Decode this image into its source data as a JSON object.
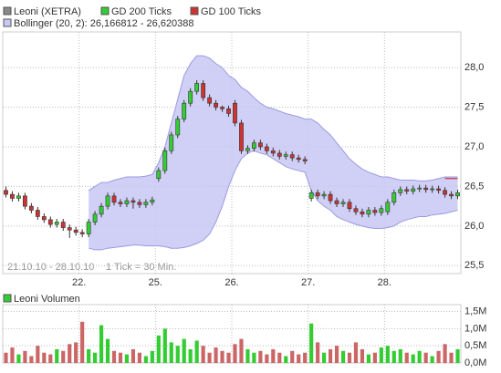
{
  "chart_data": [
    {
      "type": "candlestick",
      "name": "Leoni (XETRA)",
      "color": "#888888",
      "up_color": "#33cc33",
      "down_color": "#cc3333",
      "range_label": "21.10.10 - 28.10.10",
      "tick_label": "1 Tick = 30 Min.",
      "categories": [
        null,
        null,
        null,
        null,
        null,
        null,
        null,
        null,
        null,
        null,
        null,
        null,
        "22.",
        null,
        null,
        null,
        null,
        null,
        null,
        null,
        null,
        null,
        null,
        null,
        "25.",
        null,
        null,
        null,
        null,
        null,
        null,
        null,
        null,
        null,
        null,
        null,
        "26.",
        null,
        null,
        null,
        null,
        null,
        null,
        null,
        null,
        null,
        null,
        null,
        "27.",
        null,
        null,
        null,
        null,
        null,
        null,
        null,
        null,
        null,
        null,
        null,
        "28.",
        null,
        null,
        null,
        null,
        null,
        null,
        null,
        null,
        null,
        null,
        null
      ],
      "open": [
        26.45,
        26.4,
        26.35,
        26.38,
        26.25,
        26.2,
        26.12,
        26.08,
        26.02,
        26.05,
        25.98,
        25.95,
        25.92,
        25.9,
        26.05,
        26.15,
        26.25,
        26.38,
        26.3,
        26.28,
        26.32,
        26.3,
        26.27,
        26.3,
        26.6,
        26.7,
        26.95,
        27.15,
        27.35,
        27.55,
        27.7,
        27.8,
        27.62,
        27.55,
        27.5,
        27.48,
        27.55,
        27.3,
        26.95,
        26.98,
        27.05,
        27.0,
        26.95,
        26.92,
        26.88,
        26.9,
        26.86,
        26.84,
        26.35,
        26.42,
        26.38,
        26.4,
        26.32,
        26.28,
        26.3,
        26.22,
        26.18,
        26.15,
        26.2,
        26.17,
        26.18,
        26.3,
        26.42,
        26.46,
        26.44,
        26.47,
        26.48,
        26.46,
        26.47,
        26.45,
        26.4,
        26.38
      ],
      "high": [
        26.5,
        26.44,
        26.42,
        26.42,
        26.29,
        26.24,
        26.16,
        26.12,
        26.09,
        26.09,
        26.02,
        25.99,
        25.96,
        26.09,
        26.19,
        26.29,
        26.42,
        26.42,
        26.34,
        26.36,
        26.36,
        26.34,
        26.34,
        26.37,
        26.74,
        26.99,
        27.19,
        27.39,
        27.59,
        27.74,
        27.84,
        27.84,
        27.66,
        27.59,
        27.52,
        27.52,
        27.59,
        27.34,
        27.02,
        27.09,
        27.09,
        27.04,
        26.99,
        26.96,
        26.94,
        26.94,
        26.9,
        26.88,
        26.46,
        26.46,
        26.44,
        26.44,
        26.36,
        26.34,
        26.34,
        26.26,
        26.22,
        26.24,
        26.24,
        26.26,
        26.34,
        26.46,
        26.5,
        26.5,
        26.51,
        26.52,
        26.52,
        26.51,
        26.51,
        26.49,
        26.44,
        26.46
      ],
      "low": [
        26.36,
        26.31,
        26.31,
        26.21,
        26.16,
        26.08,
        26.04,
        25.98,
        25.98,
        25.94,
        25.85,
        25.88,
        25.86,
        25.86,
        26.01,
        26.11,
        26.21,
        26.26,
        26.24,
        26.24,
        26.22,
        26.23,
        26.23,
        26.26,
        26.56,
        26.66,
        26.91,
        27.11,
        27.31,
        27.51,
        27.66,
        27.58,
        27.51,
        27.46,
        27.44,
        27.38,
        27.26,
        26.91,
        26.91,
        26.94,
        26.96,
        26.91,
        26.88,
        26.84,
        26.84,
        26.82,
        26.8,
        26.78,
        26.31,
        26.34,
        26.34,
        26.28,
        26.24,
        26.24,
        26.18,
        26.14,
        26.11,
        26.11,
        26.13,
        26.13,
        26.14,
        26.26,
        26.38,
        26.4,
        26.4,
        26.43,
        26.42,
        26.42,
        26.41,
        26.36,
        26.34,
        26.34
      ],
      "close": [
        26.4,
        26.35,
        26.38,
        26.25,
        26.2,
        26.12,
        26.08,
        26.02,
        26.05,
        25.98,
        25.95,
        25.92,
        25.9,
        26.05,
        26.15,
        26.25,
        26.38,
        26.3,
        26.28,
        26.32,
        26.3,
        26.27,
        26.3,
        26.33,
        26.7,
        26.95,
        27.15,
        27.35,
        27.55,
        27.7,
        27.8,
        27.62,
        27.55,
        27.5,
        27.48,
        27.42,
        27.3,
        26.95,
        26.98,
        27.05,
        27.0,
        26.95,
        26.92,
        26.88,
        26.9,
        26.86,
        26.84,
        26.82,
        26.42,
        26.38,
        26.4,
        26.32,
        26.28,
        26.3,
        26.22,
        26.18,
        26.15,
        26.2,
        26.17,
        26.22,
        26.3,
        26.42,
        26.46,
        26.44,
        26.47,
        26.48,
        26.46,
        26.47,
        26.45,
        26.4,
        26.38,
        26.42
      ],
      "series": [
        {
          "name": "GD 200 Ticks",
          "color": "#33cc33",
          "values": [
            null,
            null,
            null,
            null,
            null,
            null,
            null,
            null,
            null,
            null,
            null,
            null,
            null,
            null,
            null,
            null,
            null,
            null,
            null,
            null,
            null,
            null,
            null,
            null,
            null,
            null,
            null,
            null,
            null,
            null,
            null,
            null,
            null,
            null,
            null,
            null,
            null,
            null,
            null,
            null,
            null,
            null,
            null,
            null,
            null,
            null,
            null,
            null,
            null,
            null,
            null,
            null,
            null,
            null,
            null,
            null,
            null,
            null,
            null,
            null,
            null,
            null,
            null,
            null,
            null,
            null,
            null,
            null,
            null,
            null,
            null,
            null
          ]
        },
        {
          "name": "GD 100 Ticks",
          "color": "#cc3333",
          "values": [
            null,
            null,
            null,
            null,
            null,
            null,
            null,
            null,
            null,
            null,
            null,
            null,
            null,
            null,
            null,
            null,
            null,
            null,
            null,
            null,
            null,
            null,
            null,
            null,
            null,
            null,
            null,
            null,
            null,
            null,
            null,
            null,
            null,
            null,
            null,
            null,
            null,
            null,
            null,
            null,
            null,
            null,
            null,
            null,
            null,
            null,
            null,
            null,
            null,
            null,
            null,
            null,
            null,
            null,
            null,
            null,
            null,
            null,
            null,
            null,
            null,
            null,
            null,
            null,
            null,
            null,
            null,
            null,
            null,
            26.6,
            26.6,
            26.6
          ]
        }
      ],
      "bollinger": {
        "name": "Bollinger (20, 2): 26,166812 - 26,620388",
        "color": "#c8c8f5",
        "upper": [
          null,
          null,
          null,
          null,
          null,
          null,
          null,
          null,
          null,
          null,
          null,
          null,
          null,
          26.45,
          26.5,
          26.55,
          26.55,
          26.58,
          26.6,
          26.62,
          26.62,
          26.62,
          26.63,
          26.65,
          26.8,
          27.0,
          27.3,
          27.6,
          27.9,
          28.05,
          28.15,
          28.15,
          28.12,
          28.05,
          28.0,
          27.9,
          27.85,
          27.75,
          27.7,
          27.62,
          27.55,
          27.5,
          27.48,
          27.45,
          27.42,
          27.4,
          27.38,
          27.35,
          27.35,
          27.3,
          27.22,
          27.15,
          27.05,
          26.95,
          26.85,
          26.78,
          26.72,
          26.68,
          26.65,
          26.62,
          26.62,
          26.6,
          26.58,
          26.58,
          26.58,
          26.57,
          26.57,
          26.58,
          26.6,
          26.62,
          26.62,
          26.62
        ],
        "lower": [
          null,
          null,
          null,
          null,
          null,
          null,
          null,
          null,
          null,
          null,
          null,
          null,
          null,
          25.72,
          25.7,
          25.7,
          25.72,
          25.73,
          25.74,
          25.75,
          25.76,
          25.76,
          25.75,
          25.75,
          25.75,
          25.74,
          25.72,
          25.72,
          25.73,
          25.75,
          25.78,
          25.82,
          25.9,
          26.05,
          26.25,
          26.5,
          26.7,
          26.85,
          26.92,
          26.95,
          26.92,
          26.9,
          26.85,
          26.8,
          26.75,
          26.72,
          26.7,
          26.68,
          26.45,
          26.32,
          26.25,
          26.2,
          26.12,
          26.08,
          26.05,
          26.02,
          26.0,
          25.98,
          25.97,
          25.97,
          25.98,
          26.0,
          26.05,
          26.08,
          26.1,
          26.12,
          26.12,
          26.14,
          26.15,
          26.16,
          26.18,
          26.2
        ]
      },
      "ylim": [
        25.4,
        28.45
      ],
      "yticks": [
        {
          "value": 25.5,
          "label": "25,5"
        },
        {
          "value": 26.0,
          "label": "26,0"
        },
        {
          "value": 26.5,
          "label": "26,5"
        },
        {
          "value": 27.0,
          "label": "27,0"
        },
        {
          "value": 27.5,
          "label": "27,5"
        },
        {
          "value": 28.0,
          "label": "28,0"
        }
      ],
      "grid": true
    },
    {
      "type": "bar",
      "name": "Leoni Volumen",
      "color": "#33cc33",
      "down_color": "#cc6666",
      "values": [
        300000,
        450000,
        250000,
        350000,
        200000,
        500000,
        300000,
        250000,
        400000,
        350000,
        550000,
        600000,
        1200000,
        400000,
        300000,
        1100000,
        700000,
        350000,
        300000,
        250000,
        400000,
        300000,
        200000,
        350000,
        800000,
        1000000,
        600000,
        500000,
        700000,
        400000,
        650000,
        500000,
        300000,
        450000,
        350000,
        300000,
        550000,
        700000,
        400000,
        300000,
        350000,
        250000,
        400000,
        300000,
        200000,
        350000,
        250000,
        300000,
        1150000,
        600000,
        300000,
        400000,
        500000,
        350000,
        300000,
        600000,
        400000,
        250000,
        300000,
        450000,
        500000,
        350000,
        400000,
        300000,
        250000,
        350000,
        300000,
        200000,
        350000,
        550000,
        300000,
        400000
      ],
      "ylim": [
        0,
        1700000
      ],
      "yticks": [
        {
          "value": 0,
          "label": "0,0M"
        },
        {
          "value": 500000,
          "label": "0,5M"
        },
        {
          "value": 1000000,
          "label": "1,0M"
        },
        {
          "value": 1500000,
          "label": "1,5M"
        }
      ],
      "grid": true
    }
  ]
}
